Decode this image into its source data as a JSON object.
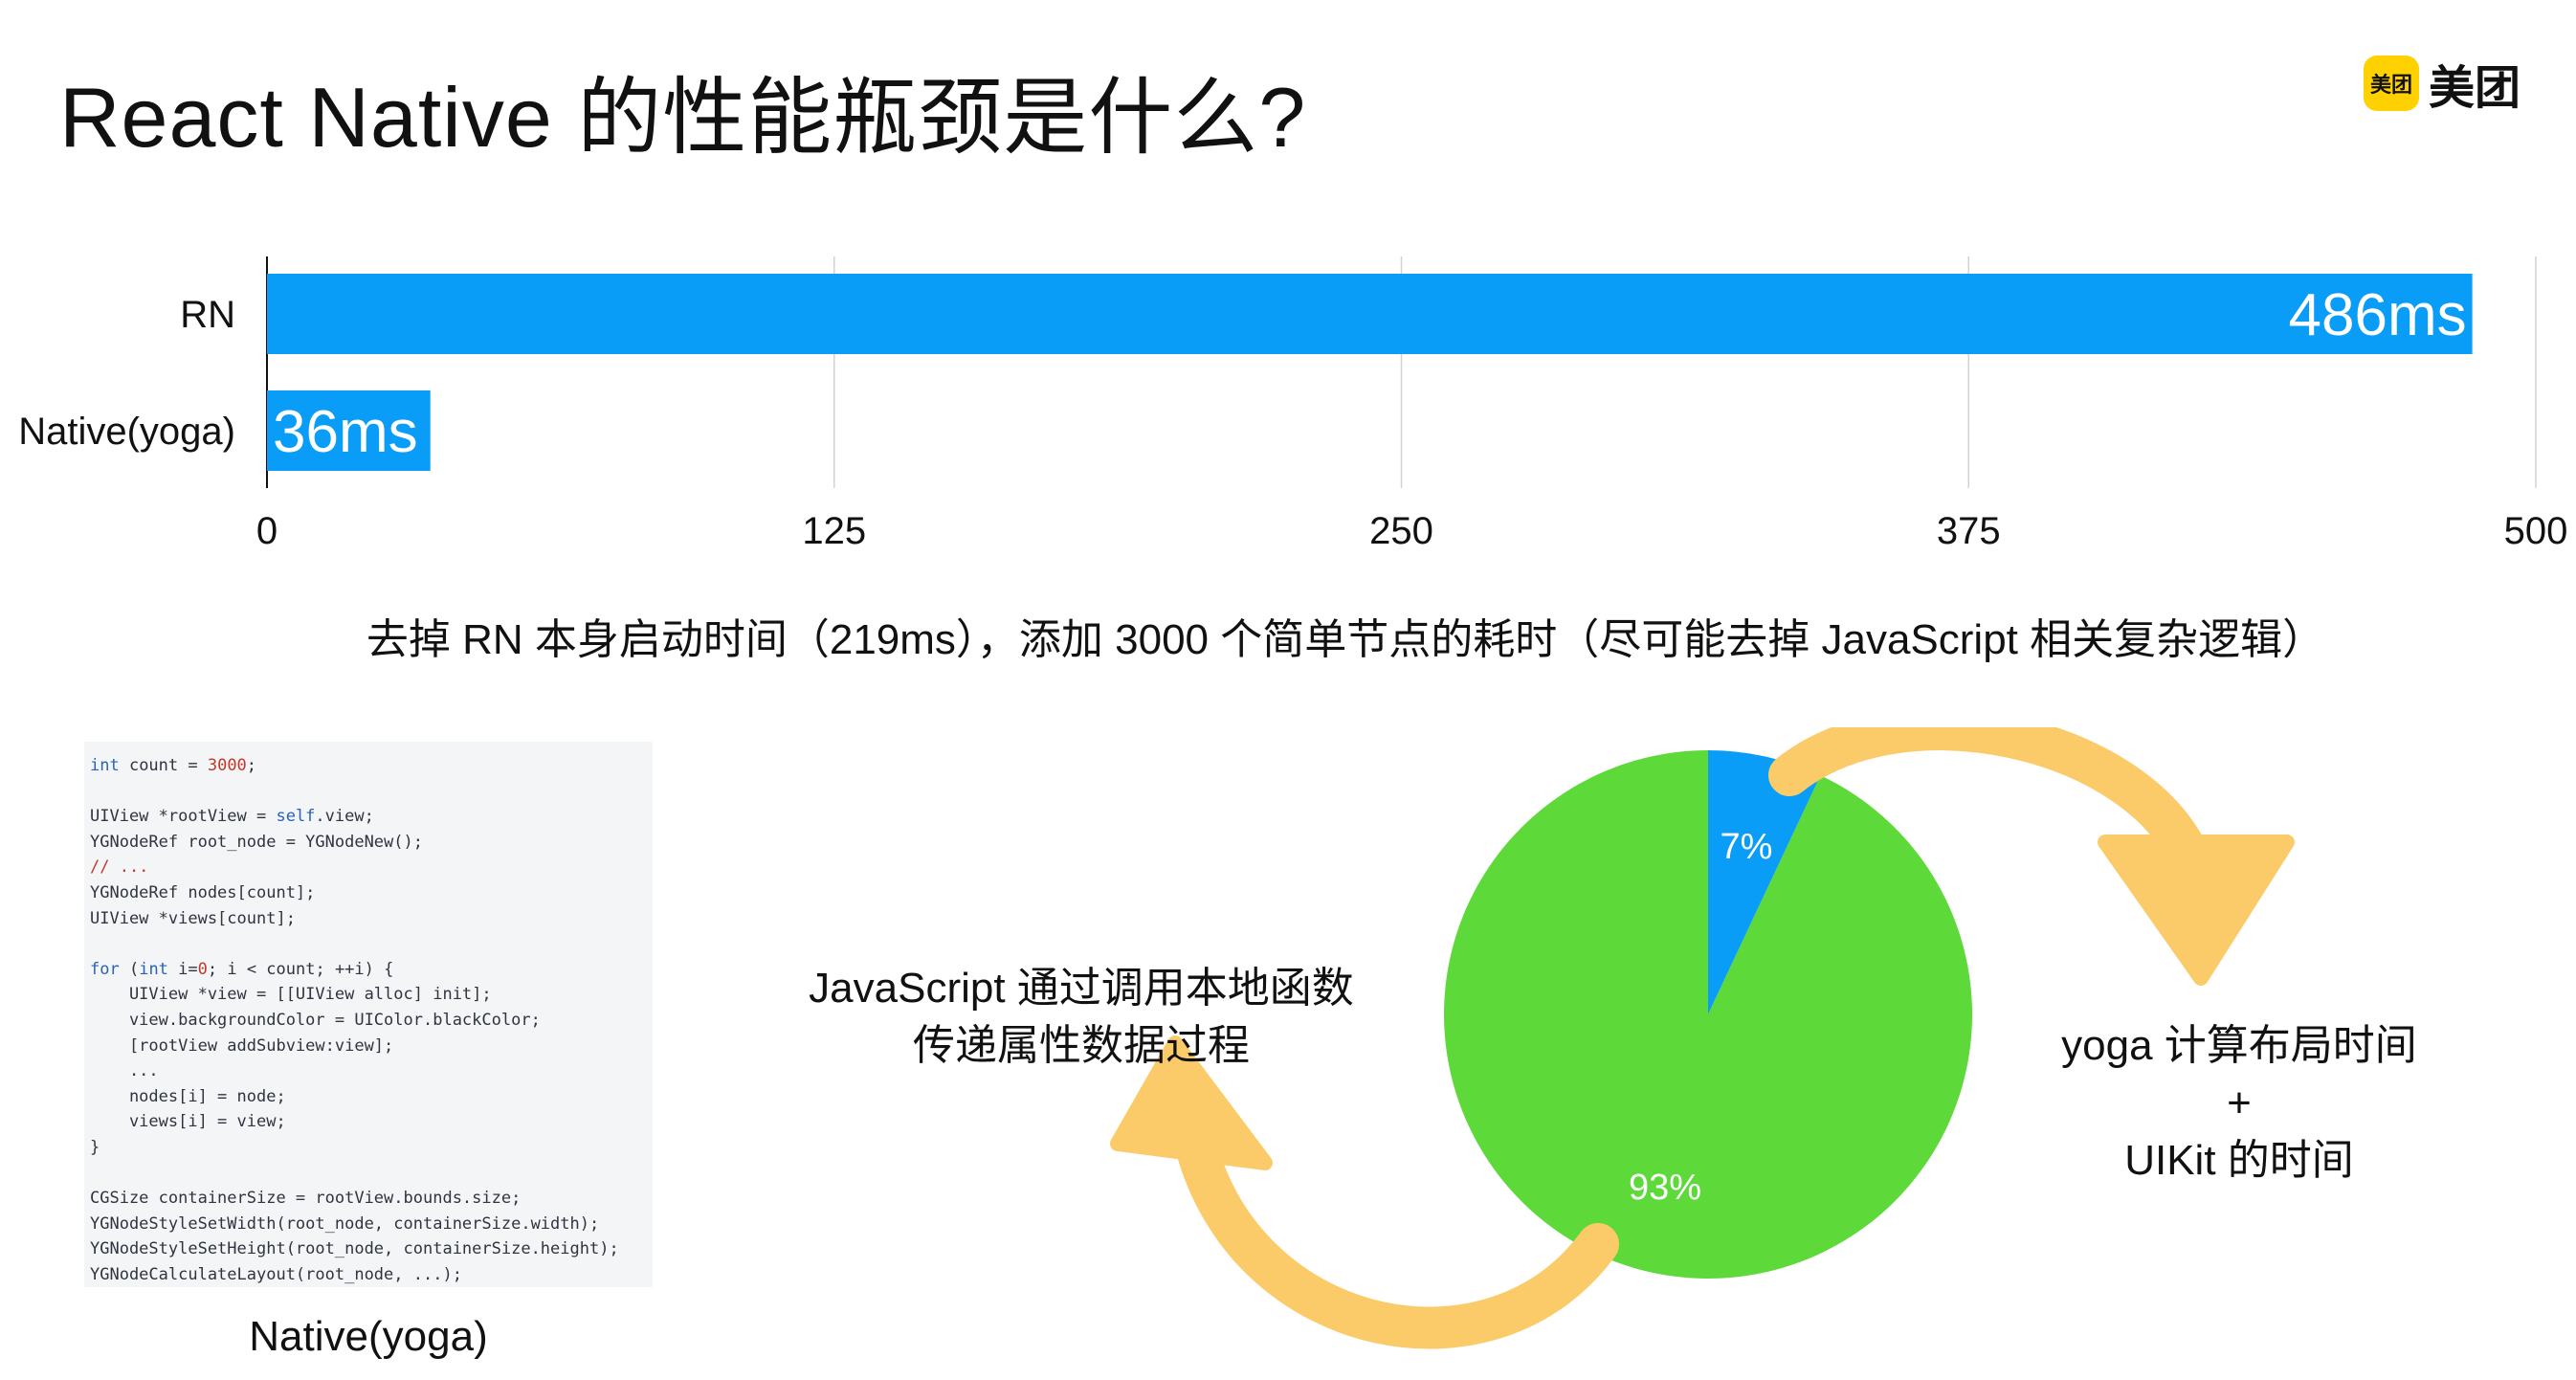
{
  "slide": {
    "title": "React Native 的性能瓶颈是什么?",
    "logo": {
      "badge": "美团",
      "text": "美团",
      "color": "#FFD100"
    },
    "caption": "去掉 RN 本身启动时间（219ms），添加 3000 个简单节点的耗时（尽可能去掉 JavaScript 相关复杂逻辑）",
    "code_lines": [
      "int count = 3000;",
      "",
      "UIView *rootView = self.view;",
      "YGNodeRef root_node = YGNodeNew();",
      "// ...",
      "YGNodeRef nodes[count];",
      "UIView *views[count];",
      "",
      "for (int i=0; i < count; ++i) {",
      "    UIView *view = [[UIView alloc] init];",
      "    view.backgroundColor = UIColor.blackColor;",
      "    [rootView addSubview:view];",
      "    ...",
      "    nodes[i] = node;",
      "    views[i] = view;",
      "}",
      "",
      "CGSize containerSize = rootView.bounds.size;",
      "YGNodeStyleSetWidth(root_node, containerSize.width);",
      "YGNodeStyleSetHeight(root_node, containerSize.height);",
      "YGNodeCalculateLayout(root_node, ...);"
    ],
    "code_label": "Native(yoga)",
    "js_label": [
      "JavaScript 通过调用本地函数",
      "传递属性数据过程"
    ],
    "yoga_label": [
      "yoga 计算布局时间",
      "+",
      "UIKit 的时间"
    ],
    "colors": {
      "bar": "#0A9DF7",
      "pie_blue": "#0A9DF7",
      "pie_green": "#5DD93A",
      "arrow": "#FBCB6A"
    }
  },
  "chart_data": [
    {
      "type": "bar",
      "orientation": "horizontal",
      "categories": [
        "RN",
        "Native(yoga)"
      ],
      "values": [
        486,
        36
      ],
      "data_labels": [
        "486ms",
        "36ms"
      ],
      "xticks": [
        "0",
        "125",
        "250",
        "375",
        "500"
      ],
      "xlim": [
        0,
        500
      ],
      "grid": true
    },
    {
      "type": "pie",
      "slices": [
        {
          "label": "7%",
          "value": 7
        },
        {
          "label": "93%",
          "value": 93
        }
      ]
    }
  ]
}
